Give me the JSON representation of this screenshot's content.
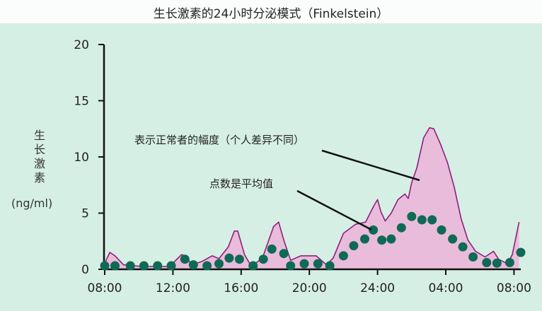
{
  "chart_data": {
    "type": "line",
    "title": "生长激素的24小时分泌模式（Finkelstein）",
    "ylabel": "生长激素",
    "yunit": "(ng/ml)",
    "xlabel": "",
    "ylim": [
      0,
      20
    ],
    "yticks": [
      "0",
      "5",
      "10",
      "15",
      "20"
    ],
    "xticks": [
      "08:00",
      "12:00",
      "16:00",
      "20:00",
      "24:00",
      "04:00",
      "08:00"
    ],
    "grid": false,
    "series": [
      {
        "role": "normal range upper bound (filled to 0)",
        "color": "#8e1f7a",
        "fill": "#e9bcdc",
        "points": [
          [
            "08:00",
            0.55
          ],
          [
            "08:18",
            1.5
          ],
          [
            "08:36",
            1.2
          ],
          [
            "09:06",
            0.4
          ],
          [
            "10:12",
            0.25
          ],
          [
            "11:48",
            0.25
          ],
          [
            "12:30",
            1.3
          ],
          [
            "12:45",
            1.2
          ],
          [
            "13:06",
            0.4
          ],
          [
            "13:42",
            0.7
          ],
          [
            "14:18",
            1.2
          ],
          [
            "14:42",
            0.95
          ],
          [
            "15:15",
            2.0
          ],
          [
            "15:36",
            3.4
          ],
          [
            "15:48",
            3.4
          ],
          [
            "16:12",
            1.3
          ],
          [
            "16:36",
            0.25
          ],
          [
            "17:15",
            1.0
          ],
          [
            "17:54",
            3.8
          ],
          [
            "18:12",
            4.2
          ],
          [
            "18:30",
            2.6
          ],
          [
            "18:54",
            0.8
          ],
          [
            "19:30",
            1.2
          ],
          [
            "20:24",
            1.2
          ],
          [
            "21:00",
            0.4
          ],
          [
            "21:24",
            1.0
          ],
          [
            "22:00",
            3.2
          ],
          [
            "22:42",
            4.0
          ],
          [
            "23:18",
            4.2
          ],
          [
            "23:48",
            5.7
          ],
          [
            "00:00",
            6.2
          ],
          [
            "00:12",
            5.1
          ],
          [
            "00:27",
            4.3
          ],
          [
            "00:48",
            5.0
          ],
          [
            "01:12",
            6.2
          ],
          [
            "01:36",
            6.7
          ],
          [
            "01:48",
            6.3
          ],
          [
            "02:00",
            7.7
          ],
          [
            "02:18",
            9.0
          ],
          [
            "02:42",
            11.7
          ],
          [
            "03:03",
            12.6
          ],
          [
            "03:18",
            12.5
          ],
          [
            "03:42",
            11.1
          ],
          [
            "04:06",
            9.5
          ],
          [
            "04:30",
            7.3
          ],
          [
            "04:54",
            4.5
          ],
          [
            "05:18",
            2.6
          ],
          [
            "05:45",
            1.6
          ],
          [
            "06:18",
            1.1
          ],
          [
            "06:48",
            1.6
          ],
          [
            "07:06",
            0.9
          ],
          [
            "07:36",
            0.5
          ],
          [
            "07:54",
            1.3
          ],
          [
            "08:18",
            4.2
          ]
        ]
      },
      {
        "role": "mean (dots)",
        "color": "#0f6a55",
        "points": [
          [
            "08:00",
            0.3
          ],
          [
            "08:36",
            0.3
          ],
          [
            "09:30",
            0.25
          ],
          [
            "10:18",
            0.25
          ],
          [
            "11:06",
            0.25
          ],
          [
            "11:54",
            0.25
          ],
          [
            "12:42",
            0.9
          ],
          [
            "13:12",
            0.4
          ],
          [
            "14:00",
            0.25
          ],
          [
            "14:42",
            0.5
          ],
          [
            "15:18",
            1.0
          ],
          [
            "15:54",
            0.9
          ],
          [
            "16:42",
            0.25
          ],
          [
            "17:18",
            0.9
          ],
          [
            "17:48",
            1.8
          ],
          [
            "18:30",
            1.4
          ],
          [
            "18:54",
            0.25
          ],
          [
            "19:42",
            0.5
          ],
          [
            "20:30",
            0.5
          ],
          [
            "21:12",
            0.3
          ],
          [
            "22:00",
            1.2
          ],
          [
            "22:36",
            2.1
          ],
          [
            "23:15",
            2.7
          ],
          [
            "23:45",
            3.5
          ],
          [
            "00:15",
            2.6
          ],
          [
            "00:48",
            2.7
          ],
          [
            "01:24",
            3.7
          ],
          [
            "02:00",
            4.7
          ],
          [
            "02:36",
            4.4
          ],
          [
            "03:12",
            4.4
          ],
          [
            "03:45",
            3.5
          ],
          [
            "04:24",
            2.7
          ],
          [
            "05:00",
            2.0
          ],
          [
            "05:36",
            1.1
          ],
          [
            "06:24",
            0.6
          ],
          [
            "07:00",
            0.55
          ],
          [
            "07:45",
            0.6
          ],
          [
            "08:24",
            1.5
          ]
        ]
      }
    ],
    "annotations": [
      {
        "text": "表示正常者的幅度（个人差异不同）",
        "target": "range"
      },
      {
        "text": "点数是平均值",
        "target": "mean"
      }
    ]
  }
}
